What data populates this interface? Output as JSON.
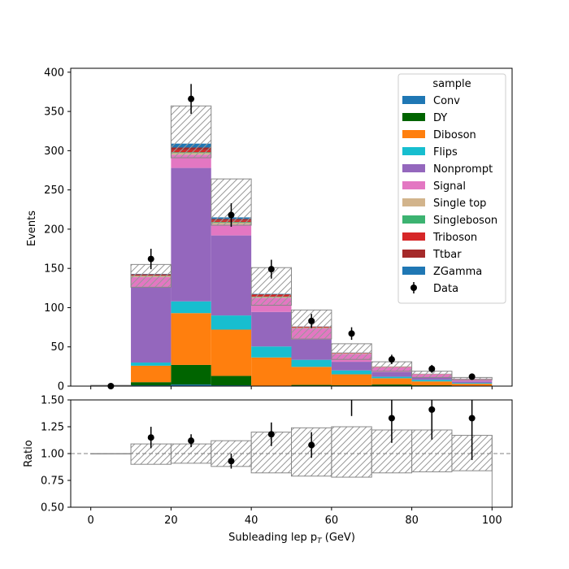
{
  "chart_data": [
    {
      "type": "bar",
      "stacked": true,
      "bin_edges": [
        0,
        10,
        20,
        30,
        40,
        50,
        60,
        70,
        80,
        90,
        100
      ],
      "x_ticks": [
        0,
        20,
        40,
        60,
        80,
        100
      ],
      "y_ticks": [
        0,
        50,
        100,
        150,
        200,
        250,
        300,
        350,
        400
      ],
      "xlim": [
        -5,
        105
      ],
      "ylim": [
        0,
        405
      ],
      "ylabel": "Events",
      "legend": {
        "title": "sample",
        "placement": "top-right"
      },
      "series": [
        {
          "name": "Conv",
          "color": "#1f77b4",
          "values": [
            0,
            1,
            2,
            1,
            0.5,
            0.5,
            0,
            0,
            0,
            0
          ]
        },
        {
          "name": "DY",
          "color": "#006400",
          "values": [
            0,
            4,
            25,
            12,
            0,
            1,
            1,
            2,
            1,
            0
          ]
        },
        {
          "name": "Diboson",
          "color": "#ff7f0e",
          "values": [
            0,
            21,
            66,
            59,
            36,
            23,
            14,
            8,
            5,
            3
          ]
        },
        {
          "name": "Flips",
          "color": "#17becf",
          "values": [
            0,
            4,
            15,
            18,
            14,
            9,
            5,
            2,
            2,
            1
          ]
        },
        {
          "name": "Nonprompt",
          "color": "#9467bd",
          "values": [
            0,
            96,
            170,
            102,
            44,
            26,
            11,
            6,
            3,
            2
          ]
        },
        {
          "name": "Signal",
          "color": "#e377c2",
          "values": [
            0,
            13,
            17,
            14,
            18,
            14,
            10,
            6,
            4,
            3
          ]
        },
        {
          "name": "Single top",
          "color": "#d2b48c",
          "values": [
            0,
            1,
            2,
            2,
            1,
            0.5,
            0.5,
            0.3,
            0.2,
            0.1
          ]
        },
        {
          "name": "Singleboson",
          "color": "#3cb371",
          "values": [
            0,
            0.5,
            1,
            1,
            0.5,
            0.3,
            0.2,
            0.1,
            0.1,
            0.1
          ]
        },
        {
          "name": "Triboson",
          "color": "#d62728",
          "values": [
            0,
            1,
            3,
            2,
            2,
            1,
            0.5,
            0.3,
            0.2,
            0.1
          ]
        },
        {
          "name": "Ttbar",
          "color": "#a52a2a",
          "values": [
            0,
            1,
            3,
            2,
            1,
            0.5,
            0.3,
            0.2,
            0.1,
            0.1
          ]
        },
        {
          "name": "ZGamma",
          "color": "#1f77b4",
          "values": [
            0,
            0.5,
            5,
            2,
            0.5,
            0.2,
            0.2,
            0.1,
            0.1,
            0.1
          ]
        }
      ],
      "uncertainty_band": {
        "low": [
          0,
          126,
          291,
          205,
          103,
          60,
          34,
          19,
          11,
          8
        ],
        "high": [
          1,
          155,
          357,
          264,
          151,
          97,
          54,
          31,
          19,
          11
        ]
      },
      "data": {
        "name": "Data",
        "x": [
          5,
          15,
          25,
          35,
          45,
          55,
          65,
          75,
          85,
          95
        ],
        "y": [
          0,
          162,
          366,
          218,
          149,
          83,
          67,
          34,
          22,
          12
        ],
        "yerr": [
          0,
          13,
          19,
          15,
          12,
          9,
          8,
          6,
          5,
          3.5
        ]
      }
    },
    {
      "type": "scatter",
      "bin_edges": [
        0,
        10,
        20,
        30,
        40,
        50,
        60,
        70,
        80,
        90,
        100
      ],
      "x_ticks": [
        0,
        20,
        40,
        60,
        80,
        100
      ],
      "y_ticks": [
        0.5,
        0.75,
        1.0,
        1.25,
        1.5
      ],
      "y_tick_labels": [
        "0.50",
        "0.75",
        "1.00",
        "1.25",
        "1.50"
      ],
      "xlim": [
        -5,
        105
      ],
      "ylim": [
        0.5,
        1.5
      ],
      "xlabel": "Subleading lep p",
      "xlabel_sub": "T",
      "xlabel_suffix": " (GeV)",
      "ylabel": "Ratio",
      "reference_line": 1.0,
      "band_low": [
        1.0,
        0.9,
        0.91,
        0.88,
        0.82,
        0.79,
        0.78,
        0.82,
        0.83,
        0.84
      ],
      "band_high": [
        1.0,
        1.09,
        1.09,
        1.12,
        1.2,
        1.24,
        1.25,
        1.22,
        1.22,
        1.17
      ],
      "x": [
        15,
        25,
        35,
        45,
        55,
        65,
        75,
        85,
        95
      ],
      "y": [
        1.15,
        1.12,
        0.93,
        1.18,
        1.08,
        1.62,
        1.33,
        1.41,
        1.33
      ],
      "yerr": [
        0.1,
        0.06,
        0.07,
        0.11,
        0.12,
        0.27,
        0.23,
        0.28,
        0.39
      ]
    }
  ]
}
